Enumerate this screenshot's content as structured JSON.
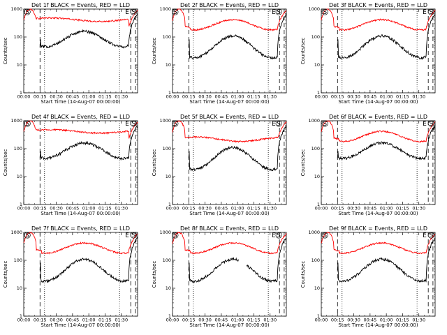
{
  "chart_data": [
    {
      "type": "line",
      "title": "Det 1f BLACK = Events, RED = LLD",
      "xlabel": "Start Time (14-Aug-07 00:00:00)",
      "ylabel": "Counts/sec",
      "yscale": "log",
      "ylim": [
        1,
        1000
      ],
      "xlim": [
        0,
        6300
      ],
      "x_ticks": [
        "00:00",
        "00:15",
        "00:30",
        "00:45",
        "01:00",
        "01:15",
        "01:30"
      ],
      "y_ticks": [
        "1",
        "10",
        "100",
        "1000"
      ],
      "markers": [
        {
          "label": "S",
          "t": 200
        },
        {
          "label": "E",
          "t": 5720
        },
        {
          "label": "S",
          "t": 6080
        }
      ],
      "dashed_lines": [
        900,
        5920,
        6180
      ],
      "dotted_lines": [
        1150,
        5300
      ],
      "series": [
        {
          "name": "",
          "color": "#ff0000",
          "profile": "flat_high"
        },
        {
          "name": "",
          "color": "#000000",
          "profile": "dip"
        }
      ]
    },
    {
      "type": "line",
      "title": "Det 2f BLACK = Events, RED = LLD",
      "xlabel": "Start Time (14-Aug-07 00:00:00)",
      "ylabel": "Counts/sec",
      "yscale": "log",
      "ylim": [
        1,
        1000
      ],
      "xlim": [
        0,
        6300
      ],
      "x_ticks": [
        "00:00",
        "00:15",
        "00:30",
        "00:45",
        "01:00",
        "01:15",
        "01:30"
      ],
      "y_ticks": [
        "1",
        "10",
        "100",
        "1000"
      ],
      "markers": [
        {
          "label": "S",
          "t": 150
        },
        {
          "label": "E",
          "t": 5600
        },
        {
          "label": "S",
          "t": 5880
        }
      ],
      "dashed_lines": [
        900,
        5920,
        6180
      ],
      "dotted_lines": [
        1150,
        5300
      ],
      "series": [
        {
          "name": "",
          "color": "#ff0000",
          "profile": "wave"
        },
        {
          "name": "",
          "color": "#000000",
          "profile": "wave"
        }
      ]
    },
    {
      "type": "line",
      "title": "Det 3f BLACK = Events, RED = LLD",
      "xlabel": "Start Time (14-Aug-07 00:00:00)",
      "ylabel": "Counts/sec",
      "yscale": "log",
      "ylim": [
        1,
        1000
      ],
      "xlim": [
        0,
        6300
      ],
      "x_ticks": [
        "00:00",
        "00:15",
        "00:30",
        "00:45",
        "01:00",
        "01:15",
        "01:30"
      ],
      "y_ticks": [
        "1",
        "10",
        "100",
        "1000"
      ],
      "markers": [
        {
          "label": "S",
          "t": 200
        },
        {
          "label": "E",
          "t": 5720
        },
        {
          "label": "S",
          "t": 6080
        }
      ],
      "dashed_lines": [
        900,
        5920,
        6180
      ],
      "dotted_lines": [
        1150,
        5300
      ],
      "series": [
        {
          "name": "",
          "color": "#ff0000",
          "profile": "wave"
        },
        {
          "name": "",
          "color": "#000000",
          "profile": "wave"
        }
      ]
    },
    {
      "type": "line",
      "title": "Det 4f BLACK = Events, RED = LLD",
      "xlabel": "Start Time (14-Aug-07 00:00:00)",
      "ylabel": "Counts/sec",
      "yscale": "log",
      "ylim": [
        1,
        1000
      ],
      "xlim": [
        0,
        6300
      ],
      "x_ticks": [
        "00:00",
        "00:15",
        "00:30",
        "00:45",
        "01:00",
        "01:15",
        "01:30"
      ],
      "y_ticks": [
        "1",
        "10",
        "100",
        "1000"
      ],
      "markers": [
        {
          "label": "S",
          "t": 200
        },
        {
          "label": "E",
          "t": 5720
        },
        {
          "label": "S",
          "t": 6080
        }
      ],
      "dashed_lines": [
        900,
        5920,
        6180
      ],
      "dotted_lines": [
        1150,
        5300
      ],
      "series": [
        {
          "name": "",
          "color": "#ff0000",
          "profile": "flat_high"
        },
        {
          "name": "",
          "color": "#000000",
          "profile": "dip"
        }
      ]
    },
    {
      "type": "line",
      "title": "Det 5f BLACK = Events, RED = LLD",
      "xlabel": "Start Time (14-Aug-07 00:00:00)",
      "ylabel": "Counts/sec",
      "yscale": "log",
      "ylim": [
        1,
        1000
      ],
      "xlim": [
        0,
        6300
      ],
      "x_ticks": [
        "00:00",
        "00:15",
        "00:30",
        "00:45",
        "01:00",
        "01:15",
        "01:30"
      ],
      "y_ticks": [
        "1",
        "10",
        "100",
        "1000"
      ],
      "markers": [
        {
          "label": "S",
          "t": 150
        },
        {
          "label": "E",
          "t": 5600
        },
        {
          "label": "S",
          "t": 5880
        }
      ],
      "dashed_lines": [
        900,
        5920,
        6180
      ],
      "dotted_lines": [
        1150,
        5300
      ],
      "series": [
        {
          "name": "",
          "color": "#ff0000",
          "profile": "flat_low"
        },
        {
          "name": "",
          "color": "#000000",
          "profile": "wave"
        }
      ]
    },
    {
      "type": "line",
      "title": "Det 6f BLACK = Events, RED = LLD",
      "xlabel": "Start Time (14-Aug-07 00:00:00)",
      "ylabel": "Counts/sec",
      "yscale": "log",
      "ylim": [
        1,
        1000
      ],
      "xlim": [
        0,
        6300
      ],
      "x_ticks": [
        "00:00",
        "00:15",
        "00:30",
        "00:45",
        "01:00",
        "01:15",
        "01:30"
      ],
      "y_ticks": [
        "1",
        "10",
        "100",
        "1000"
      ],
      "markers": [
        {
          "label": "S",
          "t": 200
        },
        {
          "label": "E",
          "t": 5720
        },
        {
          "label": "S",
          "t": 6080
        }
      ],
      "dashed_lines": [
        900,
        5920,
        6180
      ],
      "dotted_lines": [
        1150,
        5300
      ],
      "series": [
        {
          "name": "",
          "color": "#ff0000",
          "profile": "wave"
        },
        {
          "name": "",
          "color": "#000000",
          "profile": "dip"
        }
      ]
    },
    {
      "type": "line",
      "title": "Det 7f BLACK = Events, RED = LLD",
      "xlabel": "Start Time (14-Aug-07 00:00:00)",
      "ylabel": "Counts/sec",
      "yscale": "log",
      "ylim": [
        1,
        1000
      ],
      "xlim": [
        0,
        6300
      ],
      "x_ticks": [
        "00:00",
        "00:15",
        "00:30",
        "00:45",
        "01:00",
        "01:15",
        "01:30"
      ],
      "y_ticks": [
        "1",
        "10",
        "100",
        "1000"
      ],
      "markers": [
        {
          "label": "S",
          "t": 200
        },
        {
          "label": "E",
          "t": 5720
        },
        {
          "label": "S",
          "t": 6080
        }
      ],
      "dashed_lines": [
        900,
        5920,
        6180
      ],
      "dotted_lines": [
        1150,
        5300
      ],
      "series": [
        {
          "name": "",
          "color": "#ff0000",
          "profile": "wave"
        },
        {
          "name": "",
          "color": "#000000",
          "profile": "wave"
        }
      ]
    },
    {
      "type": "line",
      "title": "Det 8f BLACK = Events, RED = LLD",
      "xlabel": "Start Time (14-Aug-07 00:00:00)",
      "ylabel": "Counts/sec",
      "yscale": "log",
      "ylim": [
        1,
        1000
      ],
      "xlim": [
        0,
        6300
      ],
      "x_ticks": [
        "00:00",
        "00:15",
        "00:30",
        "00:45",
        "01:00",
        "01:15",
        "01:30"
      ],
      "y_ticks": [
        "1",
        "10",
        "100",
        "1000"
      ],
      "markers": [
        {
          "label": "S",
          "t": 150
        },
        {
          "label": "E",
          "t": 5600
        },
        {
          "label": "S",
          "t": 5880
        }
      ],
      "dashed_lines": [
        900,
        5920,
        6180
      ],
      "dotted_lines": [
        1150,
        5300
      ],
      "series": [
        {
          "name": "",
          "color": "#ff0000",
          "profile": "wave"
        },
        {
          "name": "",
          "color": "#000000",
          "profile": "gap"
        }
      ]
    },
    {
      "type": "line",
      "title": "Det 9f BLACK = Events, RED = LLD",
      "xlabel": "Start Time (14-Aug-07 00:00:00)",
      "ylabel": "Counts/sec",
      "yscale": "log",
      "ylim": [
        1,
        1000
      ],
      "xlim": [
        0,
        6300
      ],
      "x_ticks": [
        "00:00",
        "00:15",
        "00:30",
        "00:45",
        "01:00",
        "01:15",
        "01:30"
      ],
      "y_ticks": [
        "1",
        "10",
        "100",
        "1000"
      ],
      "markers": [
        {
          "label": "S",
          "t": 200
        },
        {
          "label": "E",
          "t": 5720
        },
        {
          "label": "S",
          "t": 6080
        }
      ],
      "dashed_lines": [
        900,
        5920,
        6180
      ],
      "dotted_lines": [
        1150,
        5300
      ],
      "series": [
        {
          "name": "",
          "color": "#ff0000",
          "profile": "wave"
        },
        {
          "name": "",
          "color": "#000000",
          "profile": "wave"
        }
      ]
    }
  ]
}
